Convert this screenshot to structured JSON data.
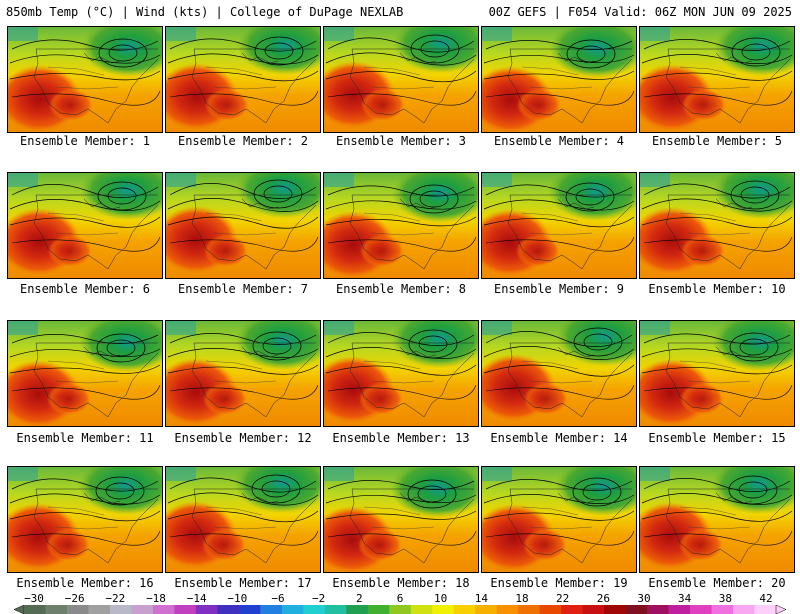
{
  "header": {
    "left": "850mb Temp (°C) | Wind (kts) | College of DuPage NEXLAB",
    "right": "00Z GEFS | F054 Valid: 06Z MON JUN 09 2025"
  },
  "members": [
    "Ensemble Member: 1",
    "Ensemble Member: 2",
    "Ensemble Member: 3",
    "Ensemble Member: 4",
    "Ensemble Member: 5",
    "Ensemble Member: 6",
    "Ensemble Member: 7",
    "Ensemble Member: 8",
    "Ensemble Member: 9",
    "Ensemble Member: 10",
    "Ensemble Member: 11",
    "Ensemble Member: 12",
    "Ensemble Member: 13",
    "Ensemble Member: 14",
    "Ensemble Member: 15",
    "Ensemble Member: 16",
    "Ensemble Member: 17",
    "Ensemble Member: 18",
    "Ensemble Member: 19",
    "Ensemble Member: 20"
  ],
  "colorbar": {
    "ticks": [
      "−30",
      "−26",
      "−22",
      "−18",
      "−14",
      "−10",
      "−6",
      "−2",
      "2",
      "6",
      "10",
      "14",
      "18",
      "22",
      "26",
      "30",
      "34",
      "38",
      "42"
    ],
    "colors": [
      "#556b55",
      "#6e7f6e",
      "#8a8a8a",
      "#a0a0a0",
      "#b8b8c8",
      "#c8a0d0",
      "#d070d0",
      "#c040c0",
      "#8030c0",
      "#4030c0",
      "#2040d0",
      "#2080e0",
      "#20b0e0",
      "#20d0d0",
      "#20c0a0",
      "#20a050",
      "#40b030",
      "#90c820",
      "#d0e010",
      "#f0f000",
      "#f8d000",
      "#f8b000",
      "#f89000",
      "#f07000",
      "#e84800",
      "#e02010",
      "#c81010",
      "#a00808",
      "#801020",
      "#a01060",
      "#c020a0",
      "#e040c0",
      "#f070e0",
      "#f8a8f0",
      "#fcd0f8"
    ]
  }
}
